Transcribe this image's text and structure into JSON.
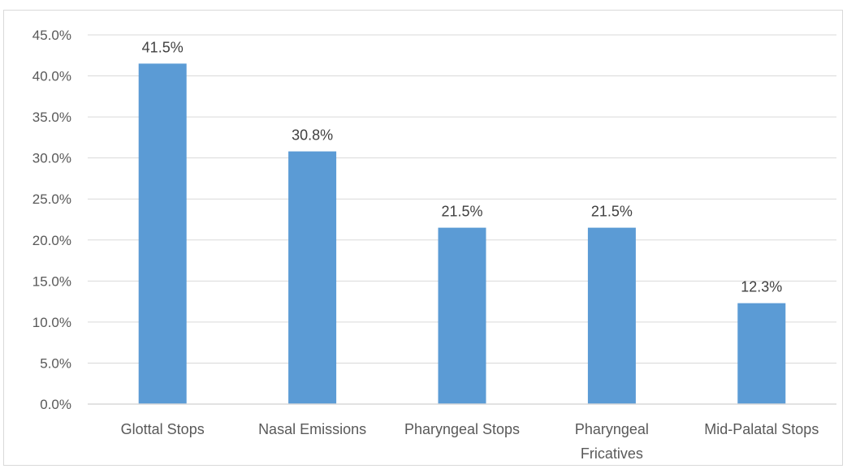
{
  "chart_data": {
    "type": "bar",
    "title": "",
    "xlabel": "",
    "ylabel": "",
    "categories": [
      [
        "Glottal Stops"
      ],
      [
        "Nasal Emissions"
      ],
      [
        "Pharyngeal Stops"
      ],
      [
        "Pharyngeal",
        "Fricatives"
      ],
      [
        "Mid-Palatal Stops"
      ]
    ],
    "values": [
      41.5,
      30.8,
      21.5,
      21.5,
      12.3
    ],
    "data_labels": [
      "41.5%",
      "30.8%",
      "21.5%",
      "21.5%",
      "12.3%"
    ],
    "ylim": [
      0,
      45
    ],
    "yticks": [
      0,
      5,
      10,
      15,
      20,
      25,
      30,
      35,
      40,
      45
    ],
    "ytick_labels": [
      "0.0%",
      "5.0%",
      "10.0%",
      "15.0%",
      "20.0%",
      "25.0%",
      "30.0%",
      "35.0%",
      "40.0%",
      "45.0%"
    ],
    "grid": true,
    "legend": "none",
    "colors": {
      "bar": "#5b9bd5",
      "grid": "#d9d9d9",
      "axis": "#d9d9d9",
      "text": "#595959"
    }
  }
}
